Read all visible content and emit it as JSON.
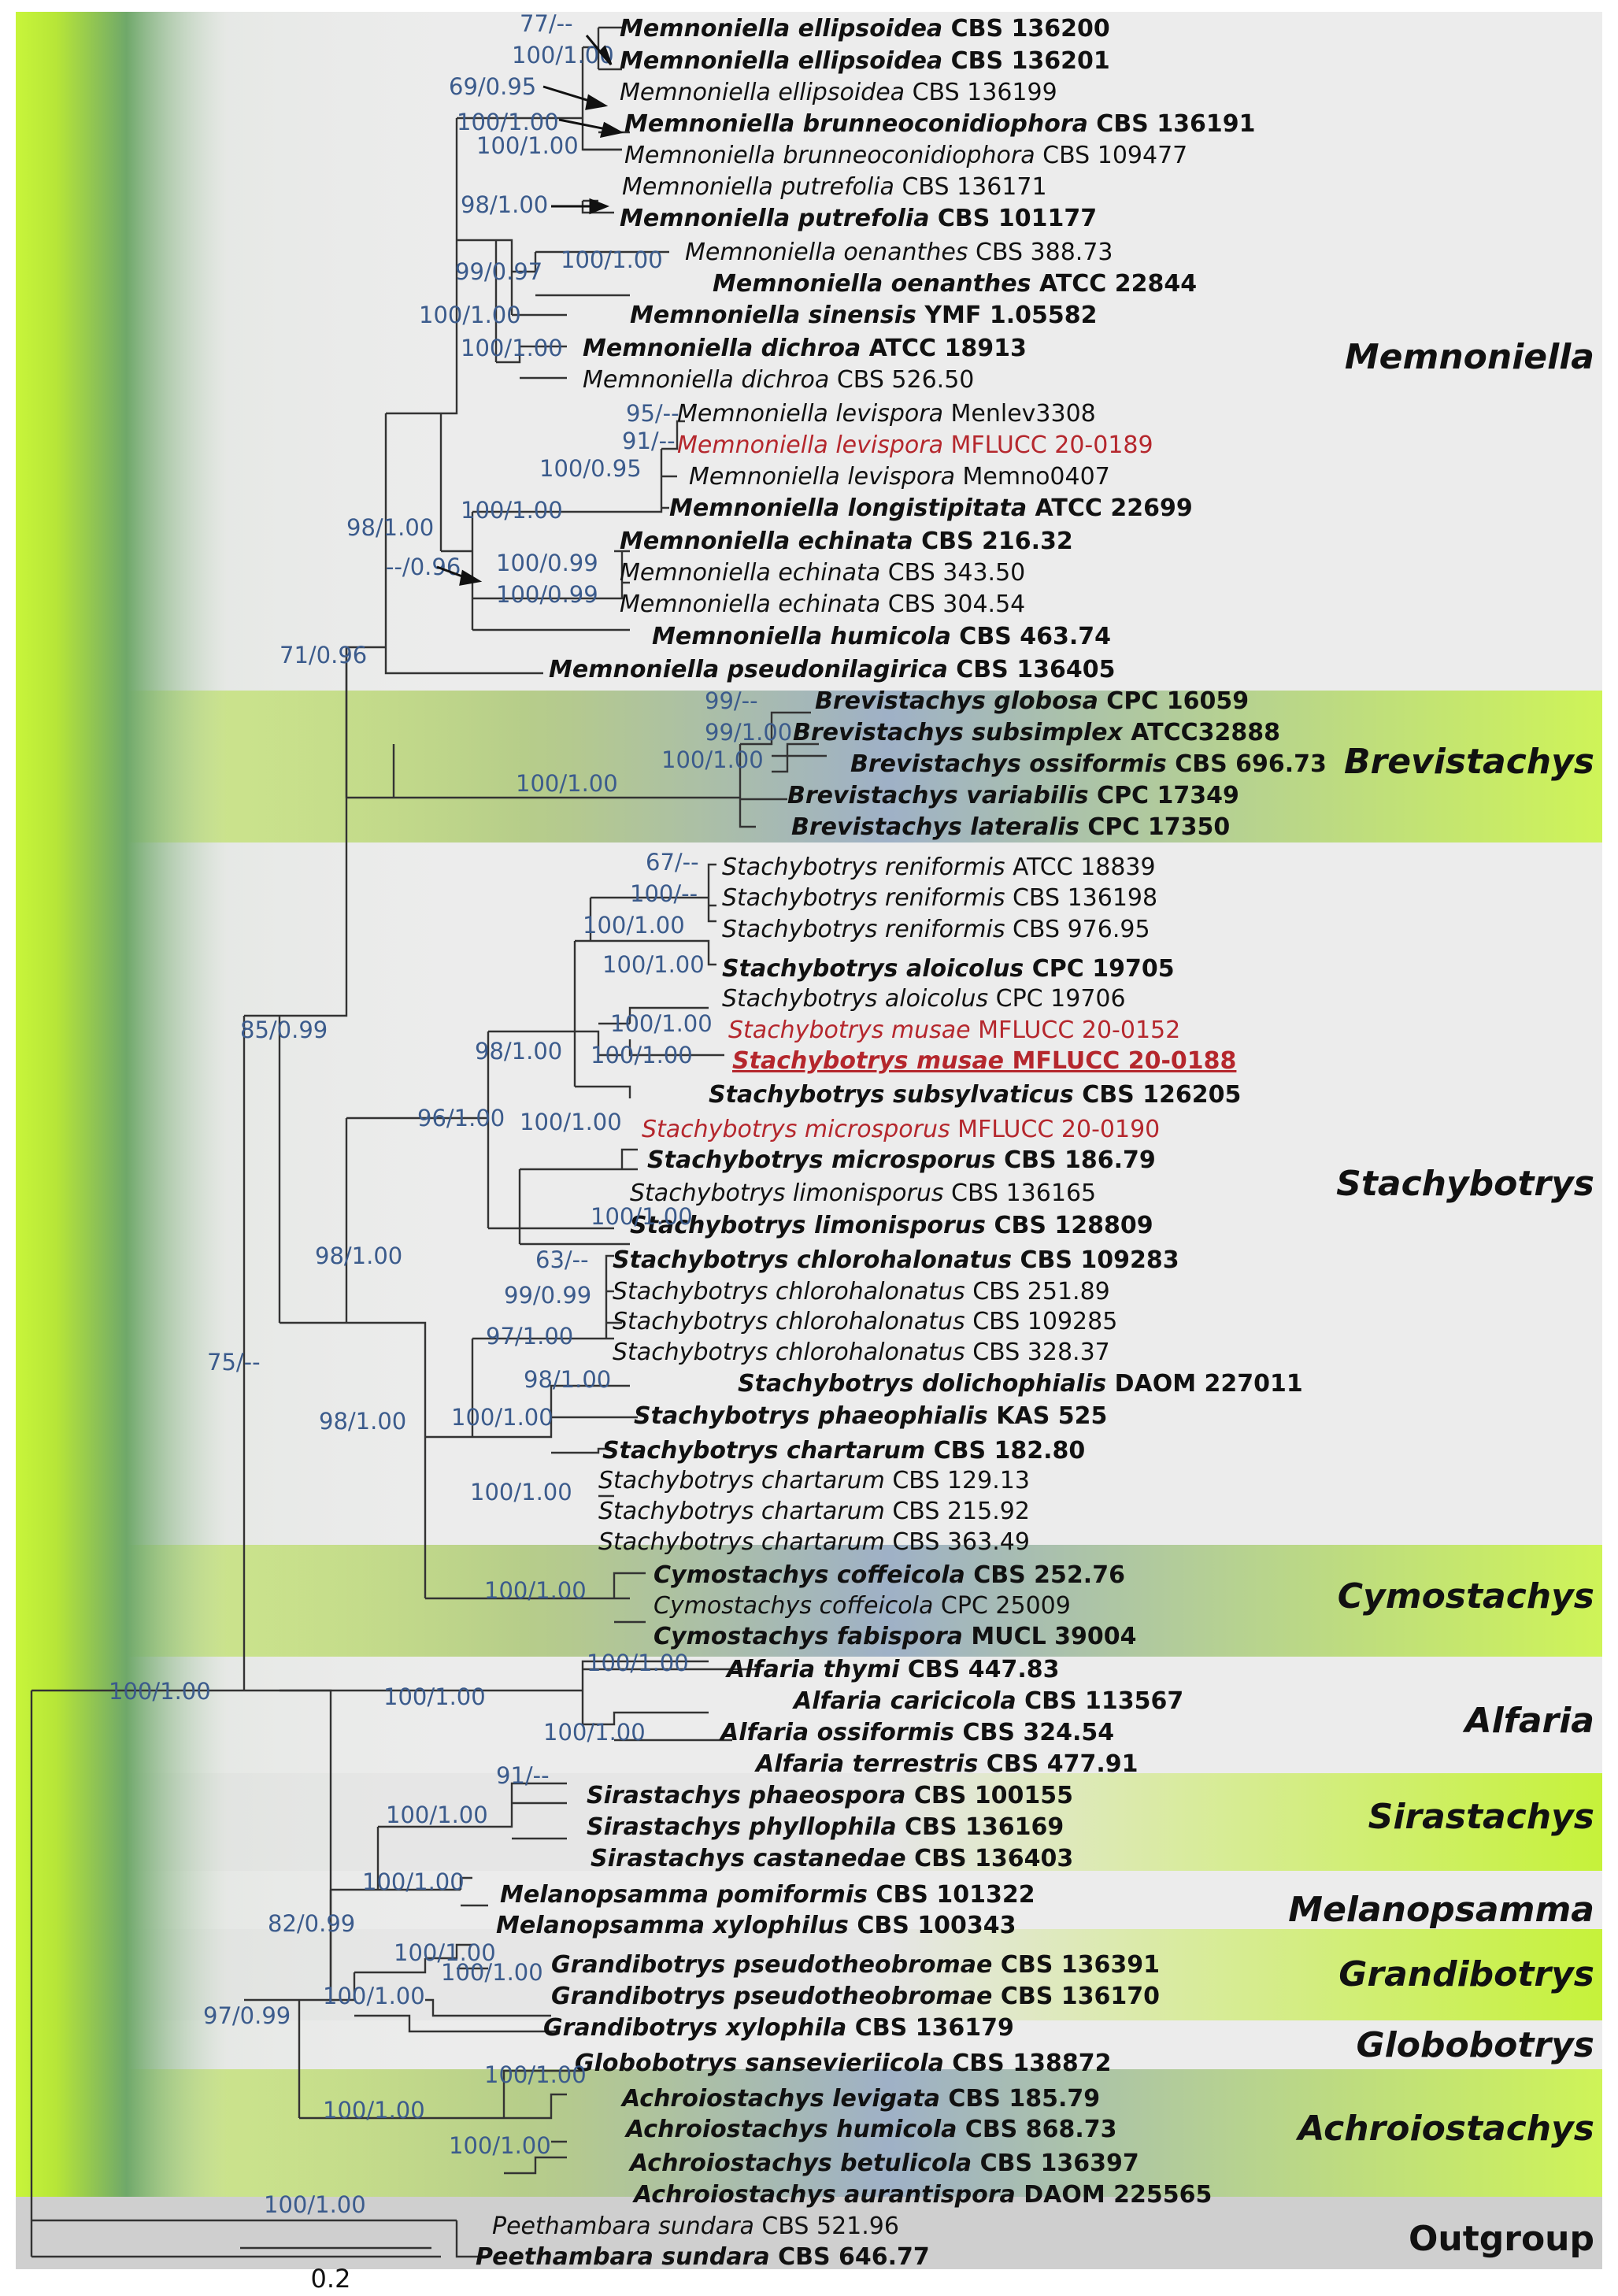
{
  "clades": [
    {
      "name": "Memnoniella"
    },
    {
      "name": "Brevistachys"
    },
    {
      "name": "Stachybotrys"
    },
    {
      "name": "Cymostachys"
    },
    {
      "name": "Alfaria"
    },
    {
      "name": "Sirastachys"
    },
    {
      "name": "Melanopsamma"
    },
    {
      "name": "Grandibotrys"
    },
    {
      "name": "Globobotrys"
    },
    {
      "name": "Achroiostachys"
    },
    {
      "name": "Outgroup"
    }
  ],
  "taxa": [
    {
      "genus": "Memnoniella",
      "species": "ellipsoidea",
      "strain": "CBS 136200",
      "type": true
    },
    {
      "genus": "Memnoniella",
      "species": "ellipsoidea",
      "strain": "CBS 136201",
      "type": true
    },
    {
      "genus": "Memnoniella",
      "species": "ellipsoidea",
      "strain": "CBS 136199",
      "type": false
    },
    {
      "genus": "Memnoniella",
      "species": "brunneoconidiophora",
      "strain": "CBS 136191",
      "type": true
    },
    {
      "genus": "Memnoniella",
      "species": "brunneoconidiophora",
      "strain": "CBS 109477",
      "type": false
    },
    {
      "genus": "Memnoniella",
      "species": "putrefolia",
      "strain": "CBS 136171",
      "type": false
    },
    {
      "genus": "Memnoniella",
      "species": "putrefolia",
      "strain": "CBS 101177",
      "type": true
    },
    {
      "genus": "Memnoniella",
      "species": "oenanthes",
      "strain": "CBS 388.73",
      "type": false
    },
    {
      "genus": "Memnoniella",
      "species": "oenanthes",
      "strain": "ATCC 22844",
      "type": true
    },
    {
      "genus": "Memnoniella",
      "species": "sinensis",
      "strain": "YMF 1.05582",
      "type": true
    },
    {
      "genus": "Memnoniella",
      "species": "dichroa",
      "strain": "ATCC 18913",
      "type": true
    },
    {
      "genus": "Memnoniella",
      "species": "dichroa",
      "strain": "CBS 526.50",
      "type": false
    },
    {
      "genus": "Memnoniella",
      "species": "levispora",
      "strain": "Menlev3308",
      "type": false
    },
    {
      "genus": "Memnoniella",
      "species": "levispora",
      "strain": "MFLUCC 20-0189",
      "type": false,
      "new": true
    },
    {
      "genus": "Memnoniella",
      "species": "levispora",
      "strain": "Memno0407",
      "type": false
    },
    {
      "genus": "Memnoniella",
      "species": "longistipitata",
      "strain": "ATCC 22699",
      "type": true
    },
    {
      "genus": "Memnoniella",
      "species": "echinata",
      "strain": "CBS 216.32",
      "type": true
    },
    {
      "genus": "Memnoniella",
      "species": "echinata",
      "strain": "CBS 343.50",
      "type": false
    },
    {
      "genus": "Memnoniella",
      "species": "echinata",
      "strain": "CBS 304.54",
      "type": false
    },
    {
      "genus": "Memnoniella",
      "species": "humicola",
      "strain": "CBS 463.74",
      "type": true
    },
    {
      "genus": "Memnoniella",
      "species": "pseudonilagirica",
      "strain": "CBS 136405",
      "type": true
    },
    {
      "genus": "Brevistachys",
      "species": "globosa",
      "strain": "CPC 16059",
      "type": true
    },
    {
      "genus": "Brevistachys",
      "species": "subsimplex",
      "strain": "ATCC32888",
      "type": true
    },
    {
      "genus": "Brevistachys",
      "species": "ossiformis",
      "strain": "CBS 696.73",
      "type": true
    },
    {
      "genus": "Brevistachys",
      "species": "variabilis",
      "strain": "CPC 17349",
      "type": true
    },
    {
      "genus": "Brevistachys",
      "species": "lateralis",
      "strain": "CPC 17350",
      "type": true
    },
    {
      "genus": "Stachybotrys",
      "species": "reniformis",
      "strain": "ATCC 18839",
      "type": false
    },
    {
      "genus": "Stachybotrys",
      "species": "reniformis",
      "strain": "CBS 136198",
      "type": false
    },
    {
      "genus": "Stachybotrys",
      "species": "reniformis",
      "strain": "CBS 976.95",
      "type": false
    },
    {
      "genus": "Stachybotrys",
      "species": "aloicolus",
      "strain": "CPC 19705",
      "type": true
    },
    {
      "genus": "Stachybotrys",
      "species": "aloicolus",
      "strain": "CPC 19706",
      "type": false
    },
    {
      "genus": "Stachybotrys",
      "species": "musae",
      "strain": "MFLUCC 20-0152",
      "type": false,
      "new": true
    },
    {
      "genus": "Stachybotrys",
      "species": "musae",
      "strain": "MFLUCC 20-0188",
      "type": true,
      "new": true
    },
    {
      "genus": "Stachybotrys",
      "species": "subsylvaticus",
      "strain": "CBS 126205",
      "type": true
    },
    {
      "genus": "Stachybotrys",
      "species": "microsporus",
      "strain": "MFLUCC 20-0190",
      "type": false,
      "new": true
    },
    {
      "genus": "Stachybotrys",
      "species": "microsporus",
      "strain": "CBS 186.79",
      "type": true
    },
    {
      "genus": "Stachybotrys",
      "species": "limonisporus",
      "strain": "CBS 136165",
      "type": false
    },
    {
      "genus": "Stachybotrys",
      "species": "limonisporus",
      "strain": "CBS 128809",
      "type": true
    },
    {
      "genus": "Stachybotrys",
      "species": "chlorohalonatus",
      "strain": "CBS 109283",
      "type": true
    },
    {
      "genus": "Stachybotrys",
      "species": "chlorohalonatus",
      "strain": "CBS 251.89",
      "type": false
    },
    {
      "genus": "Stachybotrys",
      "species": "chlorohalonatus",
      "strain": "CBS 109285",
      "type": false
    },
    {
      "genus": "Stachybotrys",
      "species": "chlorohalonatus",
      "strain": "CBS 328.37",
      "type": false
    },
    {
      "genus": "Stachybotrys",
      "species": "dolichophialis",
      "strain": "DAOM 227011",
      "type": true
    },
    {
      "genus": "Stachybotrys",
      "species": "phaeophialis",
      "strain": "KAS 525",
      "type": true
    },
    {
      "genus": "Stachybotrys",
      "species": "chartarum",
      "strain": "CBS 182.80",
      "type": true
    },
    {
      "genus": "Stachybotrys",
      "species": "chartarum",
      "strain": "CBS 129.13",
      "type": false
    },
    {
      "genus": "Stachybotrys",
      "species": "chartarum",
      "strain": "CBS 215.92",
      "type": false
    },
    {
      "genus": "Stachybotrys",
      "species": "chartarum",
      "strain": "CBS 363.49",
      "type": false
    },
    {
      "genus": "Cymostachys",
      "species": "coffeicola",
      "strain": "CBS 252.76",
      "type": true
    },
    {
      "genus": "Cymostachys",
      "species": "coffeicola",
      "strain": "CPC 25009",
      "type": false
    },
    {
      "genus": "Cymostachys",
      "species": "fabispora",
      "strain": "MUCL 39004",
      "type": true
    },
    {
      "genus": "Alfaria",
      "species": "thymi",
      "strain": "CBS 447.83",
      "type": true
    },
    {
      "genus": "Alfaria",
      "species": "caricicola",
      "strain": "CBS 113567",
      "type": true
    },
    {
      "genus": "Alfaria",
      "species": "ossiformis",
      "strain": "CBS 324.54",
      "type": true
    },
    {
      "genus": "Alfaria",
      "species": "terrestris",
      "strain": "CBS 477.91",
      "type": true
    },
    {
      "genus": "Sirastachys",
      "species": "phaeospora",
      "strain": "CBS 100155",
      "type": true
    },
    {
      "genus": "Sirastachys",
      "species": "phyllophila",
      "strain": "CBS 136169",
      "type": true
    },
    {
      "genus": "Sirastachys",
      "species": "castanedae",
      "strain": "CBS 136403",
      "type": true
    },
    {
      "genus": "Melanopsamma",
      "species": "pomiformis",
      "strain": "CBS 101322",
      "type": true
    },
    {
      "genus": "Melanopsamma",
      "species": "xylophilus",
      "strain": "CBS 100343",
      "type": true
    },
    {
      "genus": "Grandibotrys",
      "species": "pseudotheobromae",
      "strain": "CBS 136391",
      "type": true
    },
    {
      "genus": "Grandibotrys",
      "species": "pseudotheobromae",
      "strain": "CBS 136170",
      "type": true
    },
    {
      "genus": "Grandibotrys",
      "species": "xylophila",
      "strain": "CBS 136179",
      "type": true
    },
    {
      "genus": "Globobotrys",
      "species": "sansevieriicola",
      "strain": "CBS 138872",
      "type": true
    },
    {
      "genus": "Achroiostachys",
      "species": "levigata",
      "strain": "CBS 185.79",
      "type": true
    },
    {
      "genus": "Achroiostachys",
      "species": "humicola",
      "strain": "CBS 868.73",
      "type": true
    },
    {
      "genus": "Achroiostachys",
      "species": "betulicola",
      "strain": "CBS 136397",
      "type": true
    },
    {
      "genus": "Achroiostachys",
      "species": "aurantispora",
      "strain": "DAOM 225565",
      "type": true
    },
    {
      "genus": "Peethambara",
      "species": "sundara",
      "strain": "CBS 521.96",
      "type": false
    },
    {
      "genus": "Peethambara",
      "species": "sundara",
      "strain": "CBS 646.77",
      "type": true
    }
  ],
  "supports": [
    "77/--",
    "100/1.00",
    "69/0.95",
    "100/1.00",
    "100/1.00",
    "98/1.00",
    "100/1.00",
    "99/0.97",
    "100/1.00",
    "100/1.00",
    "95/--",
    "91/--",
    "100/0.95",
    "100/1.00",
    "98/1.00",
    "--/0.96",
    "100/0.99",
    "100/0.99",
    "71/0.96",
    "99/--",
    "99/1.00",
    "100/1.00",
    "100/1.00",
    "67/--",
    "100/--",
    "100/1.00",
    "100/1.00",
    "100/1.00",
    "100/1.00",
    "98/1.00",
    "96/1.00",
    "100/1.00",
    "100/1.00",
    "85/0.99",
    "63/--",
    "99/0.99",
    "97/1.00",
    "98/1.00",
    "98/1.00",
    "100/1.00",
    "100/1.00",
    "98/1.00",
    "75/--",
    "100/1.00",
    "100/1.00",
    "100/1.00",
    "100/1.00",
    "100/1.00",
    "91/--",
    "100/1.00",
    "100/1.00",
    "82/0.99",
    "100/1.00",
    "100/1.00",
    "100/1.00",
    "97/0.99",
    "100/1.00",
    "100/1.00",
    "100/1.00",
    "100/1.00"
  ],
  "scale_bar": {
    "label": "0.2"
  },
  "colors": {
    "green": "#c6f23a",
    "panel": "#ececec",
    "panel2": "#e2e2e2",
    "blue": "#8ea3bd",
    "red": "#b5272d",
    "support": "#3b5b8c"
  }
}
